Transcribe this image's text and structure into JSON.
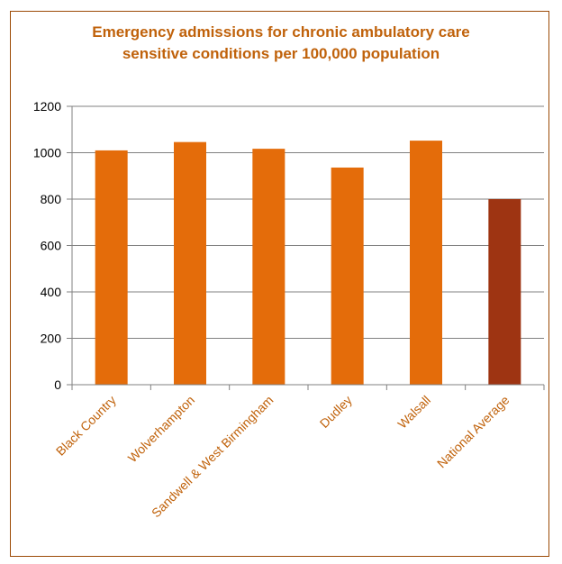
{
  "chart_data": {
    "type": "bar",
    "title_lines": [
      "Emergency admissions for chronic ambulatory care",
      "sensitive conditions per 100,000 population"
    ],
    "categories": [
      "Black Country",
      "Wolverhampton",
      "Sandwell & West Birmingham",
      "Dudley",
      "Walsall",
      "National Average"
    ],
    "values": [
      1010,
      1046,
      1017,
      936,
      1052,
      800
    ],
    "ylim": [
      0,
      1200
    ],
    "yticks": [
      "0",
      "200",
      "400",
      "600",
      "800",
      "1000",
      "1200"
    ],
    "grid": true,
    "legend": "none",
    "colors": {
      "bar": "#e46c0a",
      "highlight": "#9e3412",
      "title": "#c0620b",
      "category_label": "#c0620b",
      "gridline": "#808080",
      "border": "#9c4a06"
    }
  }
}
